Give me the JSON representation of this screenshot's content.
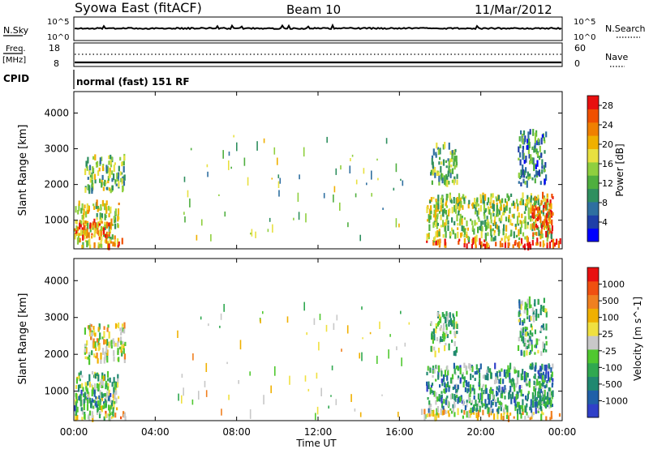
{
  "header": {
    "station": "Syowa East (fitACF)",
    "beam": "Beam 10",
    "date": "11/Mar/2012"
  },
  "strip_labels": {
    "nsky": "N.Sky",
    "nsky_top": "10^5",
    "nsky_bottom": "10^0",
    "nsearch": "N.Search",
    "nsearch_top": "10^5",
    "nsearch_bottom": "10^0",
    "freq": "Freq.",
    "freq_unit": "[MHz]",
    "freq_top": "18",
    "freq_bottom": "8",
    "nave": "Nave",
    "nave_top": "60",
    "nave_bottom": "0",
    "cpid": "CPID",
    "cpid_value": "normal (fast) 151 RF"
  },
  "colors": {
    "power": [
      "#0000ff",
      "#1f3fa8",
      "#2f6fa0",
      "#2f8f5f",
      "#4faf3f",
      "#8fcf3f",
      "#e8e040",
      "#f0b000",
      "#f08000",
      "#f05000",
      "#e81010"
    ],
    "velocity": [
      "#3040c8",
      "#2060a8",
      "#208870",
      "#30a850",
      "#50c830",
      "#c8c8c8",
      "#f0e040",
      "#f0b000",
      "#f08020",
      "#f05010",
      "#e81010"
    ]
  },
  "chart_data": [
    {
      "type": "heatmap",
      "name": "power",
      "title": "",
      "xlabel": "",
      "ylabel": "Slant Range [km]",
      "xlim": [
        "00:00",
        "24:00"
      ],
      "ylim": [
        200,
        4600
      ],
      "x_ticks": [
        "00:00",
        "04:00",
        "08:00",
        "12:00",
        "16:00",
        "20:00",
        "00:00"
      ],
      "y_ticks": [
        "1000",
        "2000",
        "3000",
        "4000"
      ],
      "colorbar": {
        "label": "Power [dB]",
        "ticks": [
          "4",
          "8",
          "12",
          "16",
          "20",
          "24",
          "28"
        ],
        "range": [
          0,
          30
        ]
      },
      "regions": [
        {
          "t0": 0.0,
          "t1": 2.2,
          "r0": 250,
          "r1": 1500,
          "level": 0.55
        },
        {
          "t0": 0.0,
          "t1": 1.8,
          "r0": 500,
          "r1": 1000,
          "level": 0.8
        },
        {
          "t0": 0.5,
          "t1": 2.5,
          "r0": 1800,
          "r1": 2800,
          "level": 0.45
        },
        {
          "t0": 1.5,
          "t1": 2.5,
          "r0": 250,
          "r1": 420,
          "level": 0.95
        },
        {
          "t0": 17.0,
          "t1": 23.9,
          "r0": 250,
          "r1": 450,
          "level": 0.85
        },
        {
          "t0": 17.3,
          "t1": 23.5,
          "r0": 450,
          "r1": 1700,
          "level": 0.5
        },
        {
          "t0": 17.5,
          "t1": 18.8,
          "r0": 2000,
          "r1": 3100,
          "level": 0.4
        },
        {
          "t0": 21.8,
          "t1": 23.2,
          "r0": 2000,
          "r1": 3500,
          "level": 0.3
        },
        {
          "t0": 22.5,
          "t1": 23.5,
          "r0": 600,
          "r1": 1700,
          "level": 0.9
        },
        {
          "t0": 5.0,
          "t1": 16.5,
          "r0": 300,
          "r1": 3400,
          "level": 0.45
        }
      ]
    },
    {
      "type": "heatmap",
      "name": "velocity",
      "title": "",
      "xlabel": "Time UT",
      "ylabel": "Slant Range [km]",
      "xlim": [
        "00:00",
        "24:00"
      ],
      "ylim": [
        200,
        4600
      ],
      "x_ticks": [
        "00:00",
        "04:00",
        "08:00",
        "12:00",
        "16:00",
        "20:00",
        "00:00"
      ],
      "y_ticks": [
        "1000",
        "2000",
        "3000",
        "4000"
      ],
      "colorbar": {
        "label": "Velocity [m s^-1]",
        "ticks": [
          "1000",
          "500",
          "100",
          "25",
          "-25",
          "-100",
          "-500",
          "-1000"
        ],
        "range": [
          -1000,
          1000
        ]
      },
      "regions": [
        {
          "t0": 0.0,
          "t1": 2.2,
          "r0": 250,
          "r1": 1500,
          "level": 0.45
        },
        {
          "t0": 0.0,
          "t1": 1.8,
          "r0": 500,
          "r1": 1000,
          "level": 0.25
        },
        {
          "t0": 0.5,
          "t1": 2.5,
          "r0": 1800,
          "r1": 2800,
          "level": 0.55
        },
        {
          "t0": 1.5,
          "t1": 2.5,
          "r0": 250,
          "r1": 420,
          "level": 0.7
        },
        {
          "t0": 17.0,
          "t1": 23.9,
          "r0": 250,
          "r1": 450,
          "level": 0.6
        },
        {
          "t0": 17.3,
          "t1": 23.5,
          "r0": 450,
          "r1": 1700,
          "level": 0.3
        },
        {
          "t0": 17.5,
          "t1": 18.8,
          "r0": 2000,
          "r1": 3100,
          "level": 0.4
        },
        {
          "t0": 21.8,
          "t1": 23.2,
          "r0": 2000,
          "r1": 3500,
          "level": 0.35
        },
        {
          "t0": 22.5,
          "t1": 23.5,
          "r0": 600,
          "r1": 1700,
          "level": 0.25
        },
        {
          "t0": 5.0,
          "t1": 16.5,
          "r0": 300,
          "r1": 3400,
          "level": 0.55
        }
      ]
    }
  ]
}
